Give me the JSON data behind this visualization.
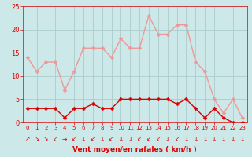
{
  "hours": [
    0,
    1,
    2,
    3,
    4,
    5,
    6,
    7,
    8,
    9,
    10,
    11,
    12,
    13,
    14,
    15,
    16,
    17,
    18,
    19,
    20,
    21,
    22,
    23
  ],
  "wind_avg": [
    3,
    3,
    3,
    3,
    1,
    3,
    3,
    4,
    3,
    3,
    5,
    5,
    5,
    5,
    5,
    5,
    4,
    5,
    3,
    1,
    3,
    1,
    0,
    0
  ],
  "wind_gust": [
    14,
    11,
    13,
    13,
    7,
    11,
    16,
    16,
    16,
    14,
    18,
    16,
    16,
    23,
    19,
    19,
    21,
    21,
    13,
    11,
    5,
    2,
    5,
    1
  ],
  "bg_color": "#cce8e8",
  "grid_color": "#aacccc",
  "avg_color": "#dd0000",
  "gust_color": "#ee9999",
  "xlabel": "Vent moyen/en rafales ( km/h )",
  "xlabel_color": "#dd0000",
  "tick_color": "#dd0000",
  "ylim": [
    0,
    25
  ],
  "yticks": [
    0,
    5,
    10,
    15,
    20,
    25
  ],
  "marker_size": 2.5,
  "line_width": 1.0,
  "arrows": [
    "↗",
    "↘",
    "↘",
    "↙",
    "→",
    "↙",
    "↓",
    "↙",
    "↓",
    "↙",
    "↓",
    "↓",
    "↙",
    "↙",
    "↙",
    "↓",
    "↙",
    "↓",
    "↓",
    "↓",
    "↓",
    "↓",
    "↓",
    "↓"
  ]
}
